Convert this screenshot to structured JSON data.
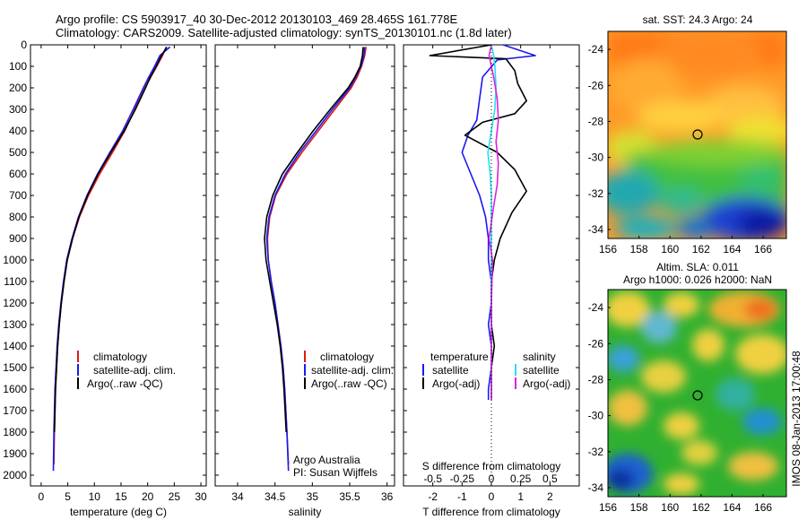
{
  "header": {
    "line1": "Argo profile: CS 5903917_40 30-Dec-2012 20130103_469 28.465S 161.778E",
    "line2": "Climatology: CARS2009. Satellite-adjusted climatology: synTS_20130101.nc (1.8d later)"
  },
  "colors": {
    "clim": "#e01818",
    "sat": "#1a1aee",
    "argo": "#000000",
    "sat_s": "#22e0f0",
    "argo_s": "#e020e0"
  },
  "chart_data": [
    {
      "type": "line",
      "name": "temperature profile",
      "xlabel": "temperature (deg C)",
      "ylabel": "",
      "xlim": [
        -2,
        31
      ],
      "ylim": [
        2050,
        0
      ],
      "xticks": [
        0,
        5,
        10,
        15,
        20,
        25,
        30
      ],
      "yticks": [
        0,
        100,
        200,
        300,
        400,
        500,
        600,
        700,
        800,
        900,
        1000,
        1100,
        1200,
        1300,
        1400,
        1500,
        1600,
        1700,
        1800,
        1900,
        2000
      ],
      "legend": [
        "climatology",
        "satellite-adj. clim.",
        "Argo(..raw -QC)"
      ],
      "series": [
        {
          "name": "climatology",
          "color": "#e01818",
          "x": [
            23.5,
            22.8,
            21.7,
            20.6,
            19.5,
            17.6,
            15.7,
            13.4,
            11.0,
            8.9,
            7.2,
            5.9,
            4.9,
            4.3,
            3.8,
            3.4,
            3.1,
            2.9,
            2.7,
            2.5,
            2.4
          ],
          "y": [
            10,
            50,
            100,
            150,
            200,
            300,
            400,
            500,
            600,
            700,
            800,
            900,
            1000,
            1100,
            1200,
            1300,
            1400,
            1500,
            1600,
            1800,
            1950
          ]
        },
        {
          "name": "satellite-adj. clim.",
          "color": "#1a1aee",
          "x": [
            24.2,
            22.3,
            21.3,
            20.2,
            19.2,
            17.3,
            15.3,
            12.9,
            10.6,
            8.6,
            7.0,
            5.8,
            4.8,
            4.2,
            3.7,
            3.3,
            3.0,
            2.8,
            2.6,
            2.4,
            2.3
          ],
          "y": [
            10,
            50,
            100,
            150,
            200,
            300,
            400,
            500,
            600,
            700,
            800,
            900,
            1000,
            1100,
            1200,
            1300,
            1400,
            1500,
            1600,
            1800,
            1980
          ]
        },
        {
          "name": "Argo(..raw -QC)",
          "color": "#000000",
          "x": [
            23.6,
            22.6,
            21.6,
            20.5,
            19.6,
            17.7,
            15.6,
            13.1,
            10.7,
            8.7,
            7.1,
            5.9,
            4.9,
            4.3,
            3.8,
            3.4,
            3.1,
            2.9,
            2.7,
            2.5
          ],
          "y": [
            10,
            50,
            100,
            150,
            200,
            300,
            400,
            500,
            600,
            700,
            800,
            900,
            1000,
            1100,
            1200,
            1300,
            1400,
            1500,
            1600,
            1800
          ]
        }
      ]
    },
    {
      "type": "line",
      "name": "salinity profile",
      "xlabel": "salinity",
      "ylabel": "",
      "xlim": [
        33.7,
        36.1
      ],
      "ylim": [
        2050,
        0
      ],
      "xticks": [
        34,
        34.5,
        35,
        35.5,
        36
      ],
      "legend": [
        "climatology",
        "satellite-adj. clim.",
        "Argo(..raw -QC)"
      ],
      "annotation": [
        "Argo Australia",
        "PI: Susan Wijffels"
      ],
      "series": [
        {
          "name": "climatology",
          "color": "#e01818",
          "x": [
            35.72,
            35.7,
            35.66,
            35.6,
            35.52,
            35.3,
            35.08,
            34.86,
            34.66,
            34.51,
            34.43,
            34.4,
            34.41,
            34.45,
            34.5,
            34.54,
            34.58,
            34.61,
            34.63,
            34.66,
            34.68
          ],
          "y": [
            10,
            50,
            100,
            150,
            200,
            300,
            400,
            500,
            600,
            700,
            800,
            900,
            1000,
            1100,
            1200,
            1300,
            1400,
            1500,
            1600,
            1800,
            1950
          ]
        },
        {
          "name": "satellite-adj. clim.",
          "color": "#1a1aee",
          "x": [
            35.7,
            35.69,
            35.65,
            35.58,
            35.5,
            35.27,
            35.05,
            34.83,
            34.64,
            34.5,
            34.42,
            34.39,
            34.41,
            34.45,
            34.5,
            34.54,
            34.58,
            34.61,
            34.63,
            34.66,
            34.68
          ],
          "y": [
            10,
            50,
            100,
            150,
            200,
            300,
            400,
            500,
            600,
            700,
            800,
            900,
            1000,
            1100,
            1200,
            1300,
            1400,
            1500,
            1600,
            1800,
            1980
          ]
        },
        {
          "name": "Argo(..raw -QC)",
          "color": "#000000",
          "x": [
            35.68,
            35.67,
            35.64,
            35.57,
            35.48,
            35.24,
            35.01,
            34.8,
            34.6,
            34.47,
            34.39,
            34.36,
            34.38,
            34.43,
            34.48,
            34.53,
            34.57,
            34.6,
            34.62,
            34.65
          ],
          "y": [
            10,
            50,
            100,
            150,
            200,
            300,
            400,
            500,
            600,
            700,
            800,
            900,
            1000,
            1100,
            1200,
            1300,
            1400,
            1500,
            1600,
            1800
          ]
        }
      ]
    },
    {
      "type": "line",
      "name": "difference from climatology",
      "xlabel": "T difference from climatology",
      "xlabel_top": "S difference from climatology",
      "xlim": [
        -3,
        3
      ],
      "ylim": [
        2050,
        0
      ],
      "xticks": [
        -2,
        -1,
        0,
        1,
        2
      ],
      "xticks_s": [
        -0.5,
        -0.25,
        0,
        0.25,
        0.5
      ],
      "legend_headers": [
        "temperature",
        "salinity"
      ],
      "legend": [
        "satellite",
        "Argo(-adj)",
        "satellite",
        "Argo(-adj)"
      ],
      "series": [
        {
          "name": "temperature satellite",
          "color": "#1a1aee",
          "x": [
            0.4,
            1.5,
            0.2,
            -0.3,
            -0.4,
            -0.5,
            -0.8,
            -1.0,
            -0.7,
            -0.4,
            -0.2,
            -0.1,
            -0.1,
            0.0,
            0.0,
            -0.1,
            0.0,
            0.0,
            -0.1,
            -0.1
          ],
          "y": [
            0,
            50,
            70,
            150,
            250,
            350,
            420,
            500,
            600,
            700,
            800,
            900,
            1000,
            1100,
            1200,
            1300,
            1400,
            1500,
            1600,
            1650
          ]
        },
        {
          "name": "temperature Argo",
          "color": "#000000",
          "x": [
            0.0,
            -2.1,
            0.5,
            0.8,
            0.9,
            1.2,
            0.8,
            -0.3,
            -0.9,
            0.2,
            0.8,
            1.2,
            0.7,
            0.3,
            0.1,
            0.0,
            0.0,
            0.0,
            0.1,
            0.0,
            0.0,
            0.0
          ],
          "y": [
            0,
            50,
            65,
            120,
            180,
            260,
            320,
            360,
            420,
            500,
            580,
            680,
            780,
            900,
            1000,
            1100,
            1200,
            1300,
            1400,
            1500,
            1600,
            1650
          ]
        },
        {
          "name": "salinity satellite",
          "color": "#22e0f0",
          "x": [
            0.0,
            0.02,
            0.03,
            0.04,
            0.03,
            0.0,
            -0.03,
            -0.01,
            0.0,
            0.0,
            0.0,
            0.0,
            0.0
          ],
          "y": [
            0,
            50,
            100,
            200,
            300,
            400,
            500,
            600,
            700,
            900,
            1100,
            1300,
            1650
          ]
        },
        {
          "name": "salinity Argo",
          "color": "#e020e0",
          "x": [
            0.0,
            -0.02,
            0.02,
            0.05,
            0.06,
            0.04,
            0.06,
            0.05,
            0.02,
            -0.02,
            0.01,
            0.0,
            0.0,
            0.0
          ],
          "y": [
            0,
            50,
            150,
            250,
            350,
            450,
            550,
            650,
            750,
            900,
            1000,
            1200,
            1400,
            1650
          ]
        }
      ]
    },
    {
      "type": "heatmap",
      "name": "satellite SST map",
      "title": "sat. SST: 24.3  Argo: 24",
      "xlim": [
        156,
        167.5
      ],
      "ylim": [
        -34.5,
        -23
      ],
      "xticks": [
        156,
        158,
        160,
        162,
        164,
        166
      ],
      "yticks": [
        -24,
        -26,
        -28,
        -30,
        -32,
        -34
      ],
      "marker": {
        "lon": 161.778,
        "lat": -28.465
      }
    },
    {
      "type": "heatmap",
      "name": "altimetry SLA map",
      "title": "Altim. SLA: 0.011",
      "subtitle": "Argo h1000: 0.026 h2000: NaN",
      "xlim": [
        156,
        167.5
      ],
      "ylim": [
        -34.5,
        -23
      ],
      "xticks": [
        156,
        158,
        160,
        162,
        164,
        166
      ],
      "yticks": [
        -24,
        -26,
        -28,
        -30,
        -32,
        -34
      ],
      "marker": {
        "lon": 161.778,
        "lat": -28.465
      }
    }
  ],
  "side_label": "IMOS 08-Jan-2013 17:00:48"
}
